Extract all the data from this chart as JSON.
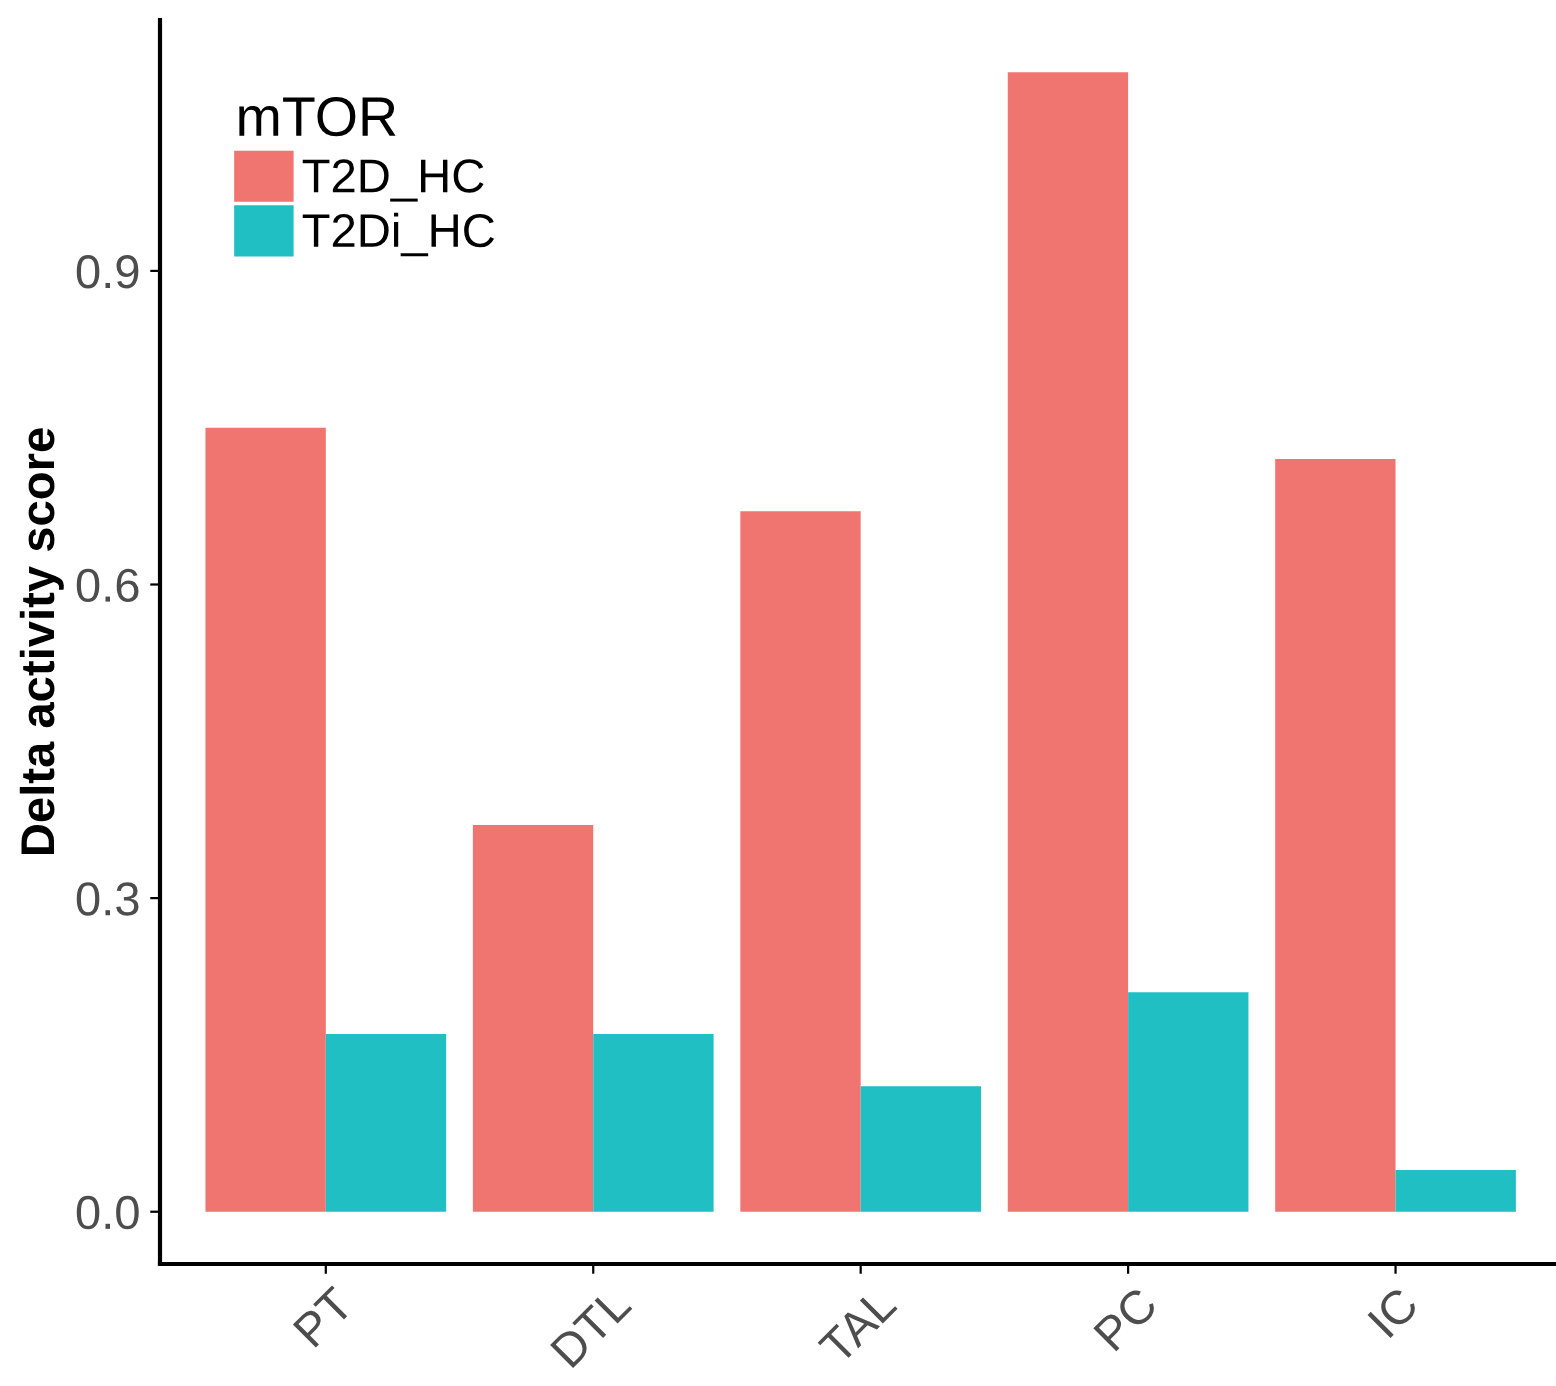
{
  "chart_data": {
    "type": "bar",
    "ylabel": "Delta activity score",
    "legend_title": "mTOR",
    "categories": [
      "PT",
      "DTL",
      "TAL",
      "PC",
      "IC"
    ],
    "series": [
      {
        "name": "T2D_HC",
        "color": "#f07470",
        "values": [
          0.75,
          0.37,
          0.67,
          1.09,
          0.72
        ]
      },
      {
        "name": "T2Di_HC",
        "color": "#1fbfc3",
        "values": [
          0.17,
          0.17,
          0.12,
          0.21,
          0.04
        ]
      }
    ],
    "ylim": [
      -0.05,
      1.14
    ],
    "yticks": [
      {
        "value": 0,
        "label": "0.0"
      },
      {
        "value": 0.3,
        "label": "0.3"
      },
      {
        "value": 0.6,
        "label": "0.6"
      },
      {
        "value": 0.9,
        "label": "0.9"
      }
    ],
    "grid": false,
    "legend": "top left"
  }
}
